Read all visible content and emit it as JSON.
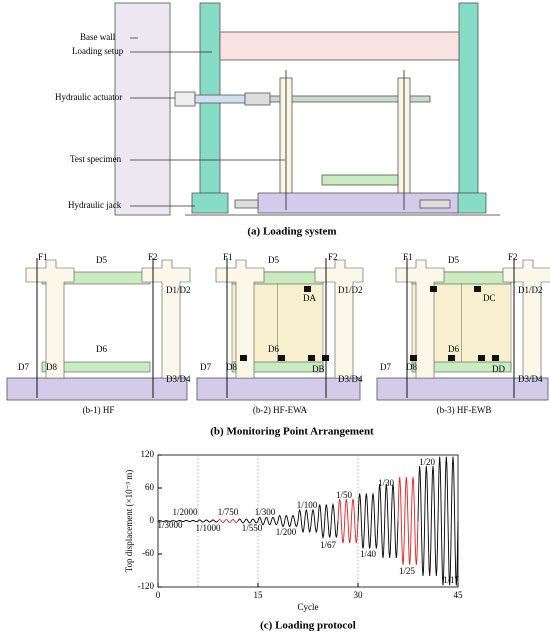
{
  "loading_system": {
    "labels": [
      "Base wall",
      "Loading setup",
      "Hydraulic actuator",
      "Test specimen",
      "Hydraulic jack"
    ],
    "caption": "(a) Loading system"
  },
  "monitoring": {
    "caption": "(b) Monitoring Point Arrangement",
    "panels": [
      {
        "caption": "(b-1) HF",
        "labels": [
          "F1",
          "F2",
          "D5",
          "D1/D2",
          "D6",
          "D7",
          "D8",
          "D3/D4"
        ]
      },
      {
        "caption": "(b-2) HF-EWA",
        "labels": [
          "F1",
          "F2",
          "D5",
          "D1/D2",
          "DA",
          "D6",
          "D7",
          "D8",
          "DB",
          "D3/D4"
        ]
      },
      {
        "caption": "(b-3) HF-EWB",
        "labels": [
          "F1",
          "F2",
          "D5",
          "D1/D2",
          "DC",
          "D6",
          "D7",
          "D8",
          "DD",
          "D3/D4"
        ]
      }
    ]
  },
  "chart_data": {
    "type": "line",
    "caption": "(c) Loading protocol",
    "xlabel": "Cycle",
    "ylabel": "Top displacement (×10⁻³ m)",
    "xlim": [
      0,
      45
    ],
    "xticks": [
      0,
      15,
      30,
      45
    ],
    "ylim": [
      -120,
      120
    ],
    "yticks": [
      -120,
      -60,
      0,
      60,
      120
    ],
    "dashed_x": [
      6,
      15,
      30
    ],
    "levels": [
      {
        "label": "1/3000",
        "amplitude": 0.67,
        "color": "#000000"
      },
      {
        "label": "1/2000",
        "amplitude": 1,
        "color": "#000000"
      },
      {
        "label": "1/1000",
        "amplitude": 2,
        "color": "#000000"
      },
      {
        "label": "1/750",
        "amplitude": 2.7,
        "color": "#e02020"
      },
      {
        "label": "1/550",
        "amplitude": 3.6,
        "color": "#000000"
      },
      {
        "label": "1/300",
        "amplitude": 6.7,
        "color": "#000000"
      },
      {
        "label": "1/200",
        "amplitude": 10,
        "color": "#000000"
      },
      {
        "label": "1/100",
        "amplitude": 20,
        "color": "#000000"
      },
      {
        "label": "1/67",
        "amplitude": 30,
        "color": "#000000"
      },
      {
        "label": "1/50",
        "amplitude": 40,
        "color": "#e02020"
      },
      {
        "label": "1/40",
        "amplitude": 50,
        "color": "#000000"
      },
      {
        "label": "1/30",
        "amplitude": 67,
        "color": "#000000"
      },
      {
        "label": "1/25",
        "amplitude": 80,
        "color": "#e02020"
      },
      {
        "label": "1/20",
        "amplitude": 100,
        "color": "#000000"
      },
      {
        "label": "1/17",
        "amplitude": 117,
        "color": "#000000"
      }
    ]
  }
}
